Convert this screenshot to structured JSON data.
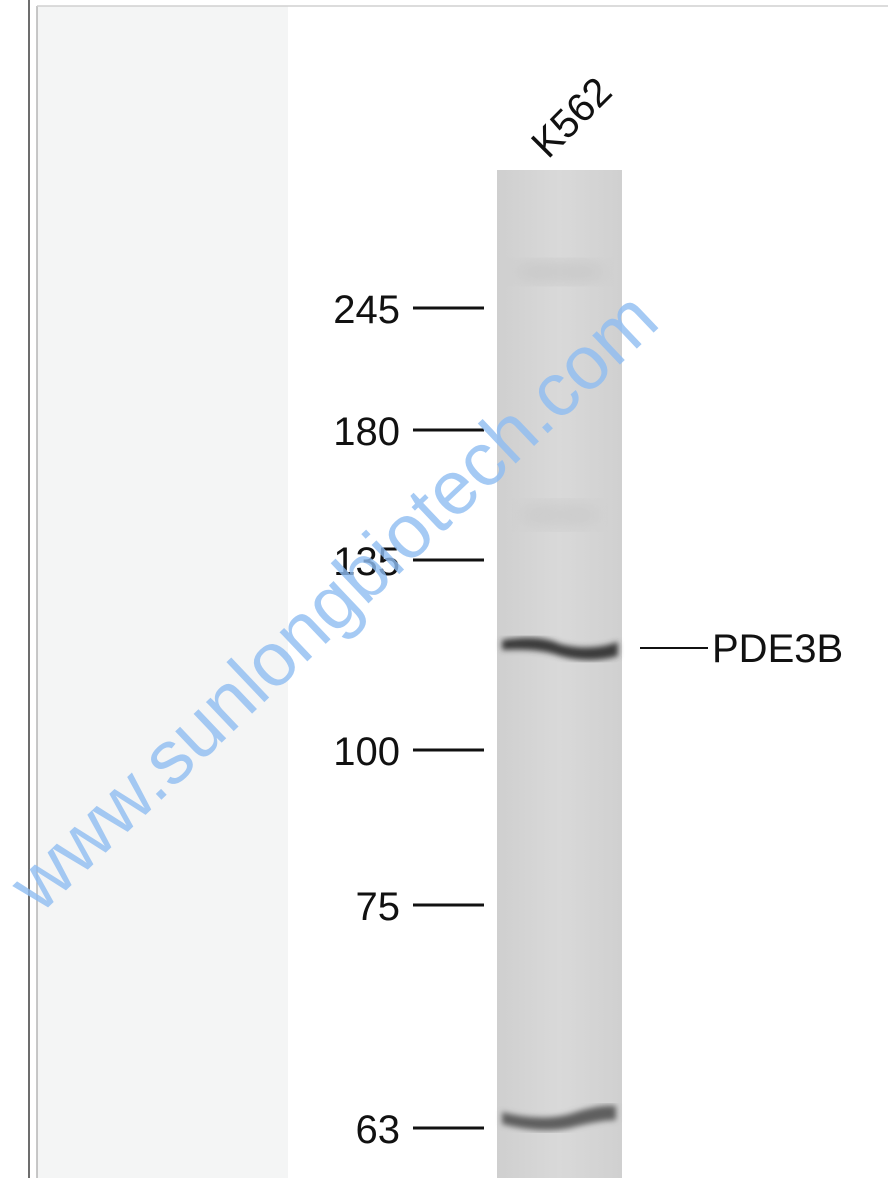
{
  "lane_label": "K562",
  "markers": [
    245,
    180,
    135,
    100,
    75,
    63
  ],
  "band_label": "PDE3B",
  "watermark": "www.sunlongbiotech.com"
}
